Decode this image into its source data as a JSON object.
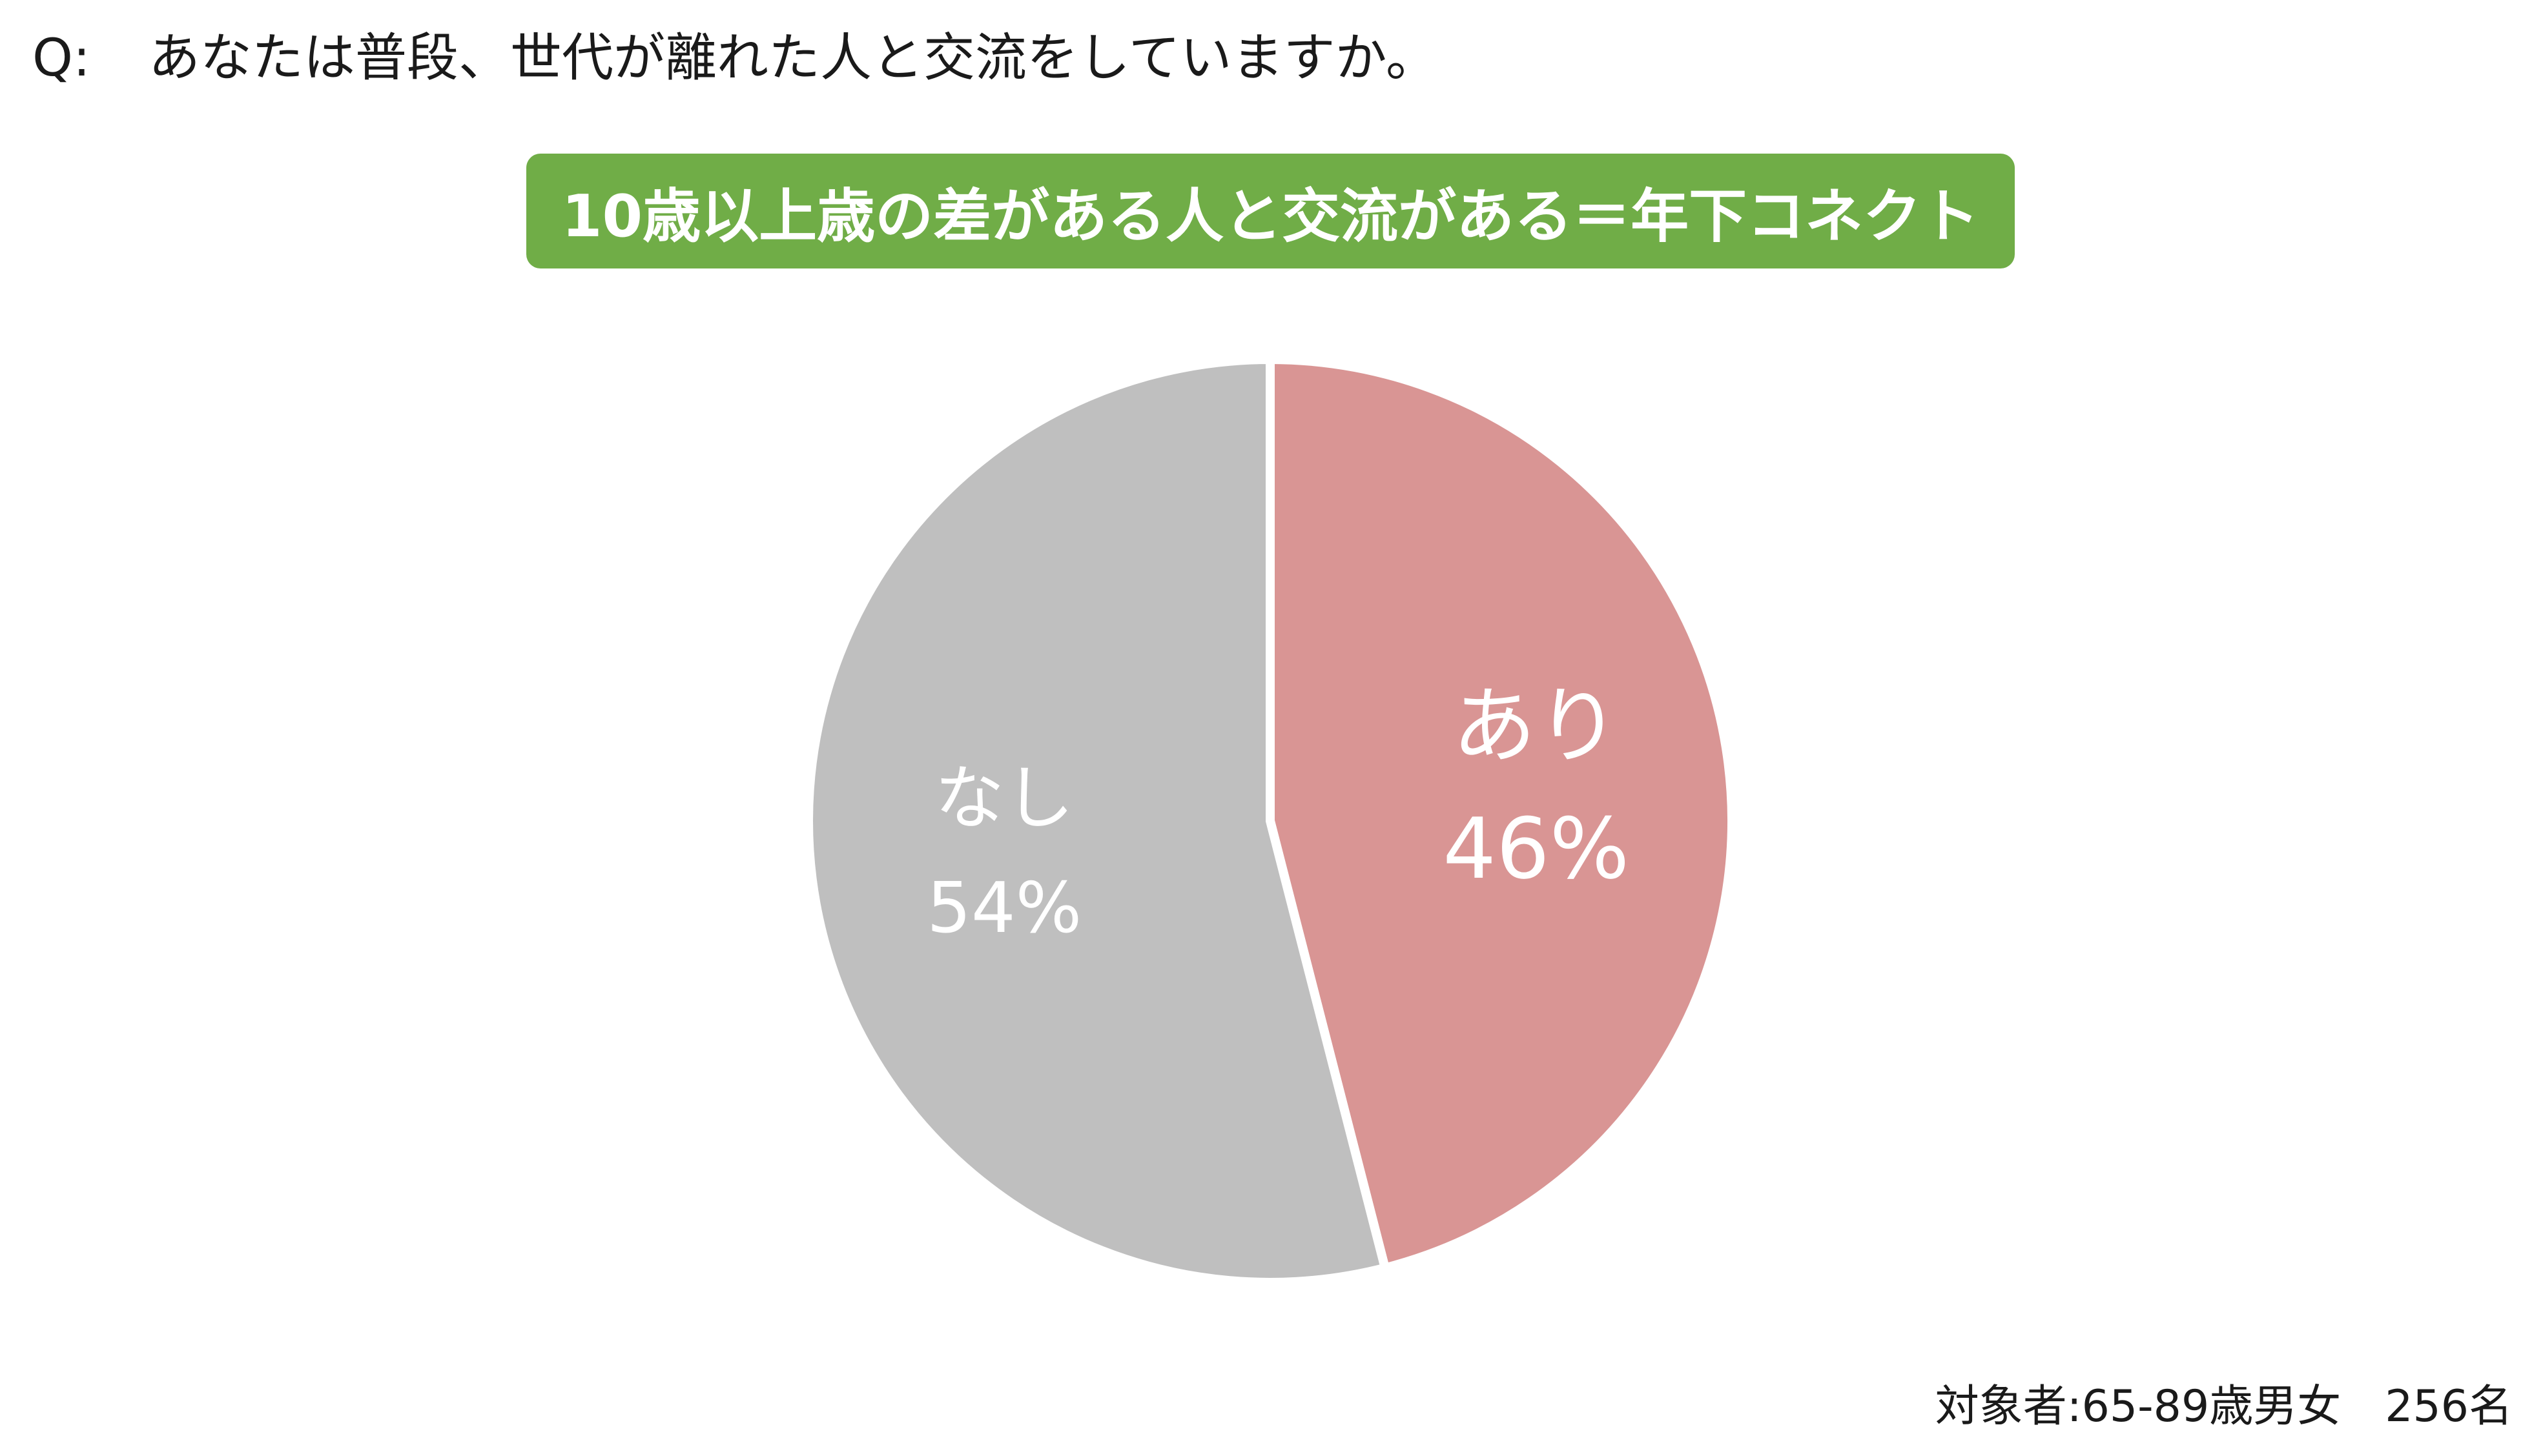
{
  "question": {
    "prefix": "Q:",
    "text": "あなたは普段、世代が離れた人と交流をしていますか。"
  },
  "banner": {
    "text": "10歳以上歳の差がある人と交流がある＝年下コネクト",
    "color": "#70ad47"
  },
  "chart_data": {
    "type": "pie",
    "title": "",
    "start": "12 o'clock",
    "direction": "clockwise",
    "slices": [
      {
        "label": "あり",
        "value": 46,
        "value_label": "46%",
        "color": "#d99594"
      },
      {
        "label": "なし",
        "value": 54,
        "value_label": "54%",
        "color": "#bfbfbf"
      }
    ],
    "legend": "none"
  },
  "footnote": {
    "text": "対象者:65-89歳男女　256名"
  }
}
